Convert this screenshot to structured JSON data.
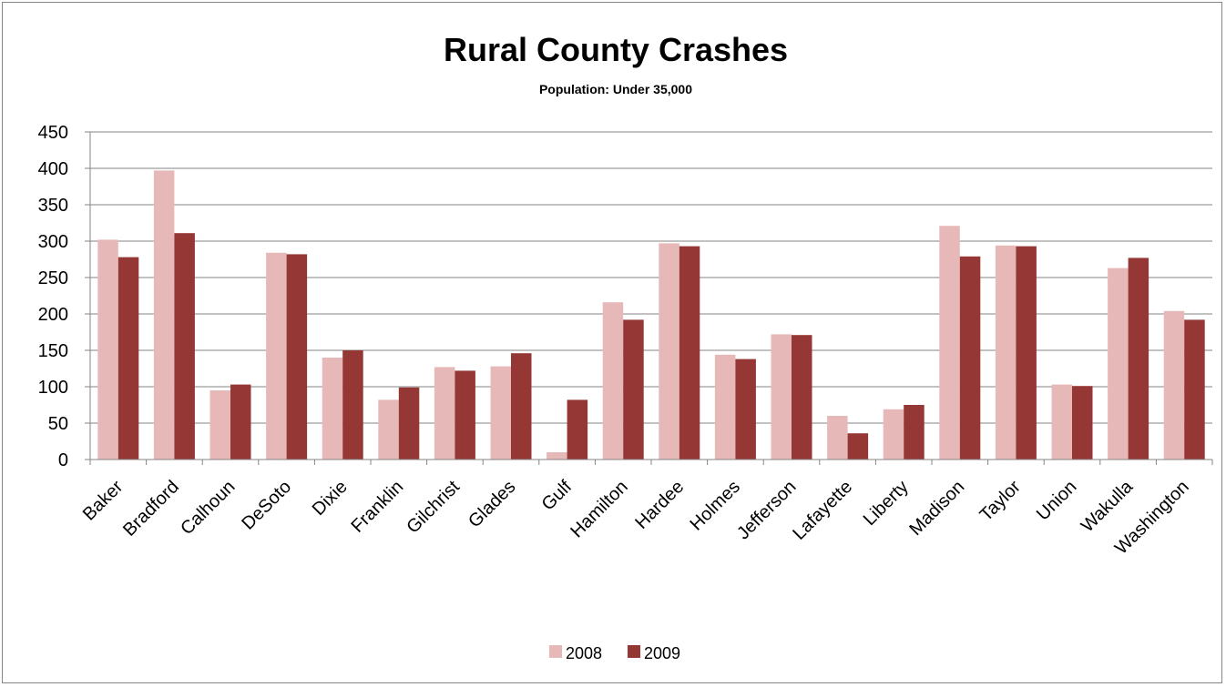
{
  "chart_data": {
    "type": "bar",
    "title": "Rural County Crashes",
    "subtitle": "Population:  Under 35,000",
    "xlabel": "",
    "ylabel": "",
    "ylim": [
      0,
      450
    ],
    "yticks": [
      0,
      50,
      100,
      150,
      200,
      250,
      300,
      350,
      400,
      450
    ],
    "grid": true,
    "legend_position": "bottom",
    "categories": [
      "Baker",
      "Bradford",
      "Calhoun",
      "DeSoto",
      "Dixie",
      "Franklin",
      "Gilchrist",
      "Glades",
      "Gulf",
      "Hamilton",
      "Hardee",
      "Holmes",
      "Jefferson",
      "Lafayette",
      "Liberty",
      "Madison",
      "Taylor",
      "Union",
      "Wakulla",
      "Washington"
    ],
    "series": [
      {
        "name": "2008",
        "color": "#E6B9B8",
        "values": [
          302,
          397,
          95,
          284,
          140,
          82,
          127,
          128,
          10,
          216,
          297,
          144,
          172,
          60,
          69,
          321,
          294,
          103,
          263,
          204
        ]
      },
      {
        "name": "2009",
        "color": "#953735",
        "values": [
          278,
          311,
          103,
          282,
          150,
          99,
          122,
          146,
          82,
          192,
          293,
          138,
          171,
          36,
          75,
          279,
          293,
          101,
          277,
          192
        ]
      }
    ]
  }
}
